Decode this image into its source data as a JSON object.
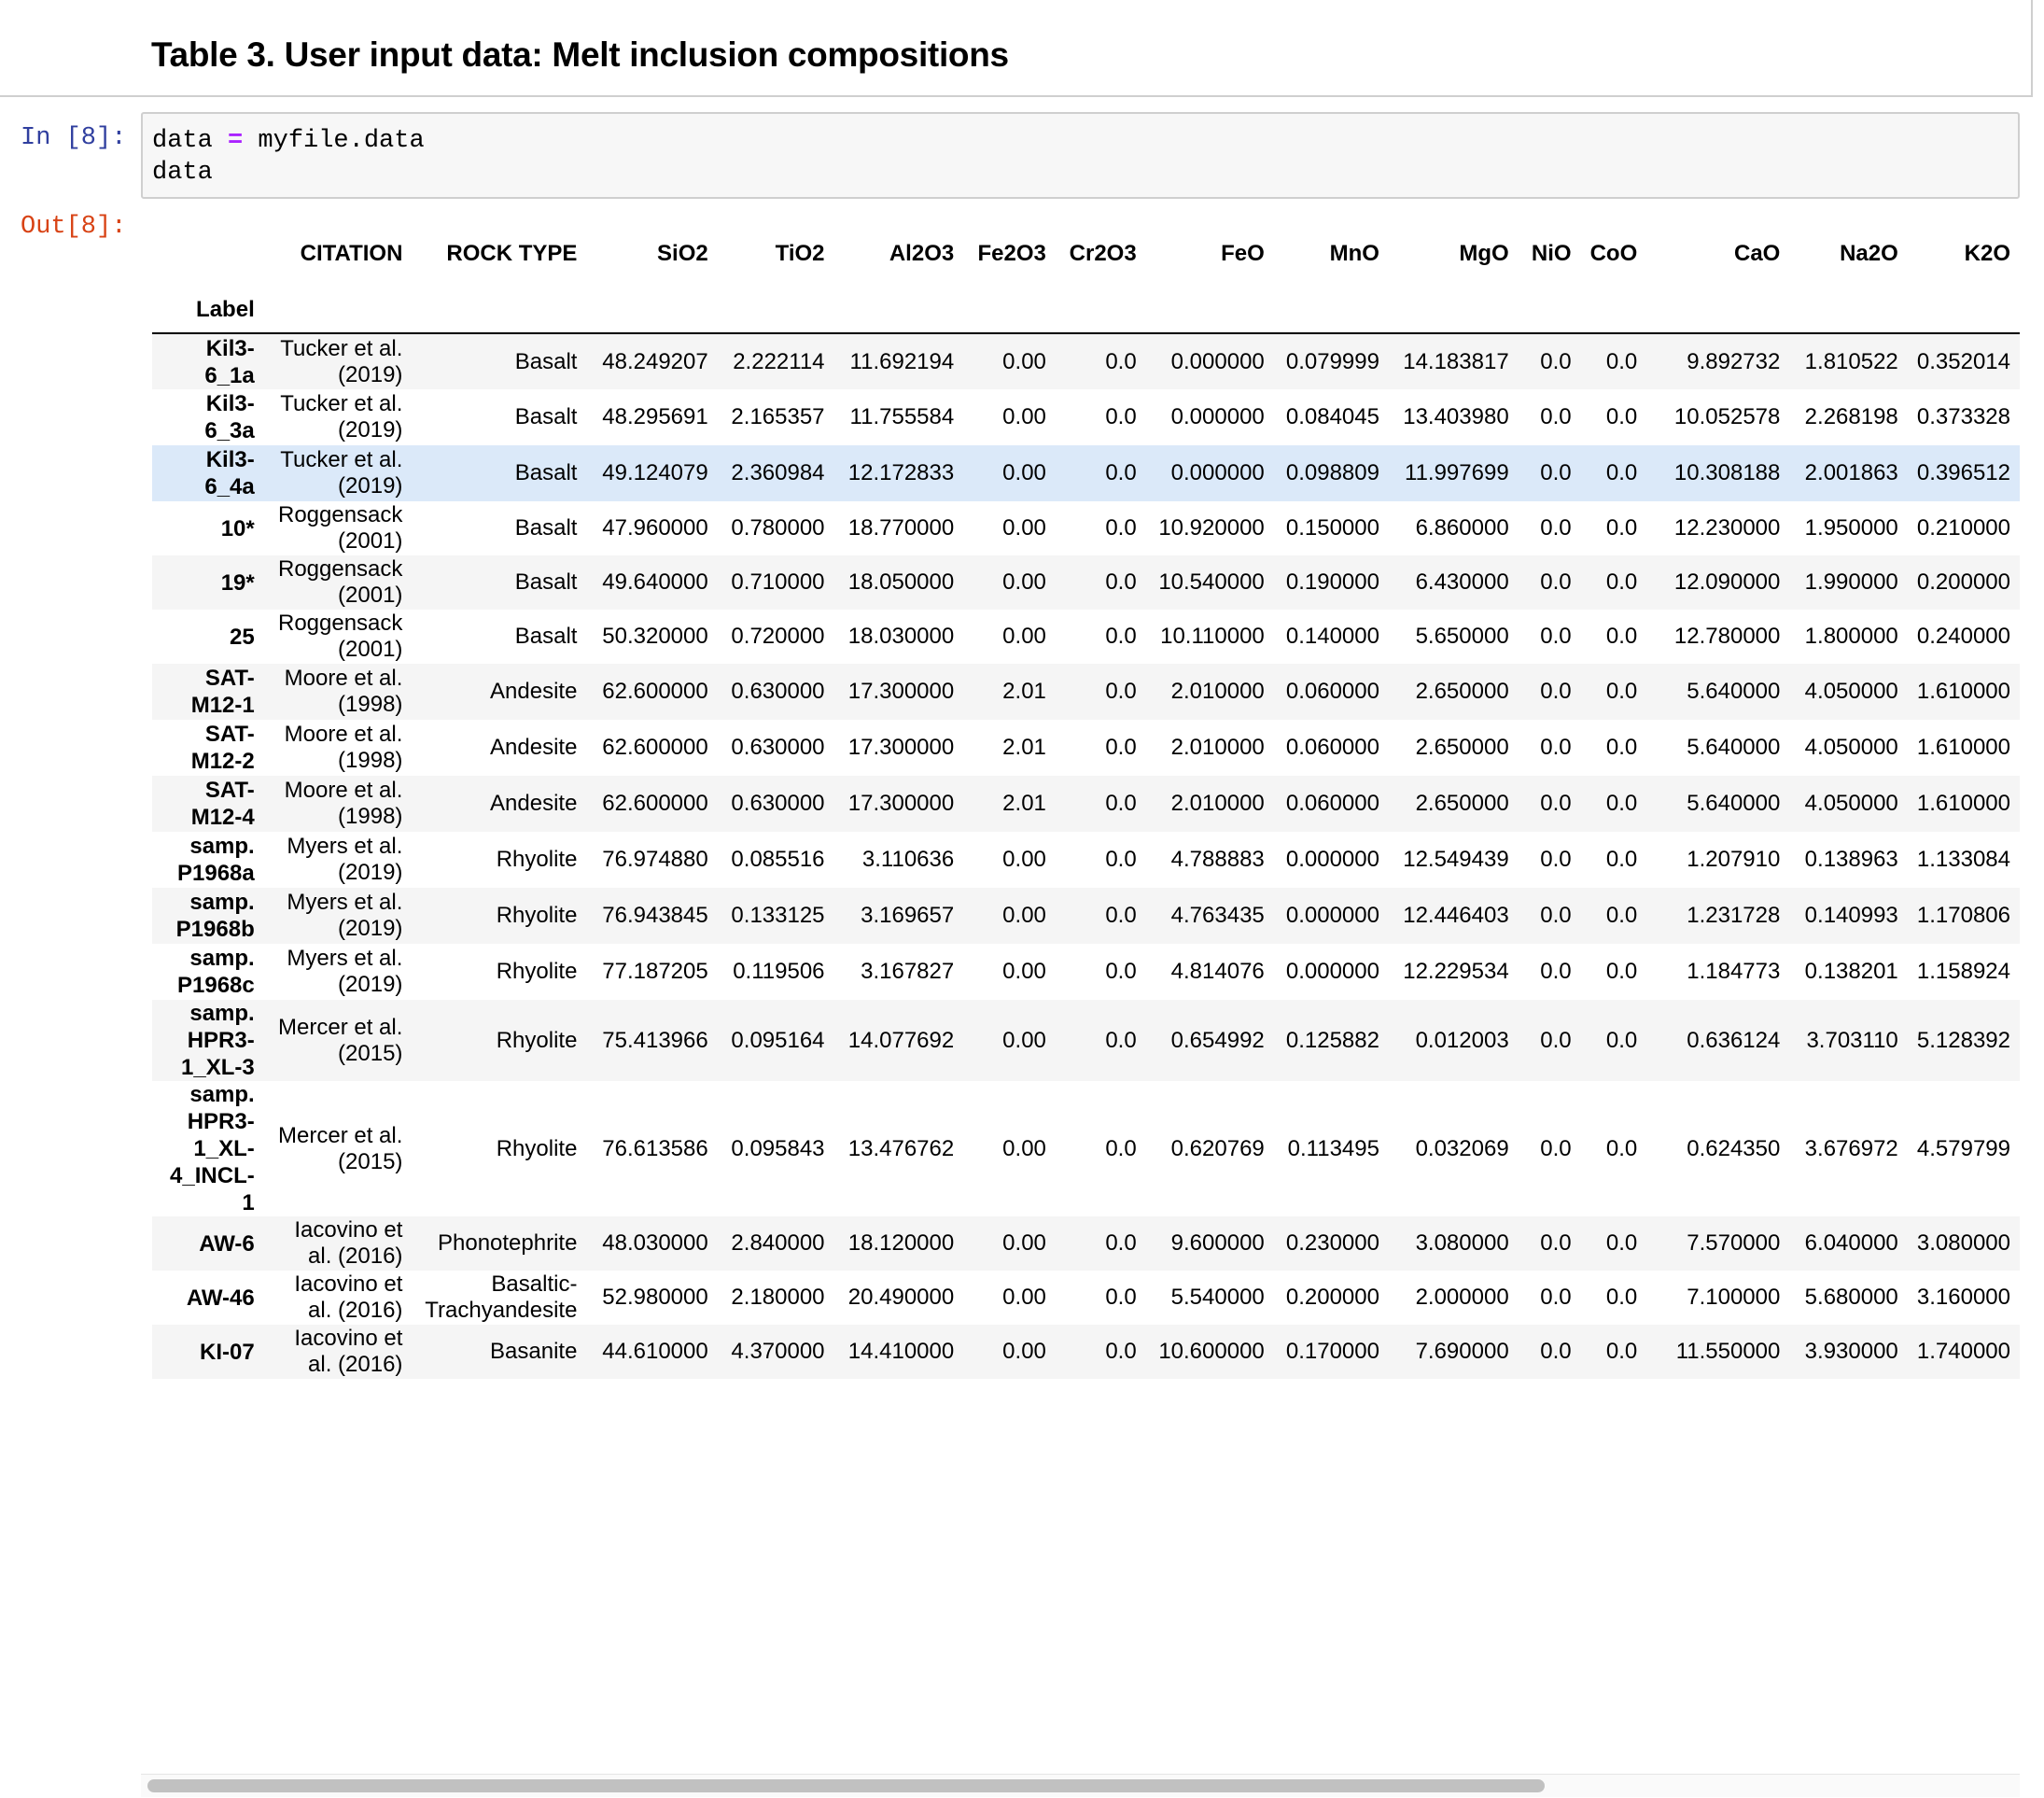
{
  "markdown": {
    "title": "Table 3. User input data: Melt inclusion compositions"
  },
  "input_cell": {
    "prompt": "In [8]:",
    "code": {
      "line1_a": "data ",
      "line1_op": "=",
      "line1_b": " myfile.data",
      "line2": "data"
    }
  },
  "output_cell": {
    "prompt": "Out[8]:"
  },
  "table": {
    "index_name": "Label",
    "columns": [
      "CITATION",
      "ROCK TYPE",
      "SiO2",
      "TiO2",
      "Al2O3",
      "Fe2O3",
      "Cr2O3",
      "FeO",
      "MnO",
      "MgO",
      "NiO",
      "CoO",
      "CaO",
      "Na2O",
      "K2O"
    ],
    "rows": [
      {
        "label": "Kil3-6_1a",
        "cells": [
          "Tucker et al. (2019)",
          "Basalt",
          "48.249207",
          "2.222114",
          "11.692194",
          "0.00",
          "0.0",
          "0.000000",
          "0.079999",
          "14.183817",
          "0.0",
          "0.0",
          "9.892732",
          "1.810522",
          "0.352014"
        ]
      },
      {
        "label": "Kil3-6_3a",
        "cells": [
          "Tucker et al. (2019)",
          "Basalt",
          "48.295691",
          "2.165357",
          "11.755584",
          "0.00",
          "0.0",
          "0.000000",
          "0.084045",
          "13.403980",
          "0.0",
          "0.0",
          "10.052578",
          "2.268198",
          "0.373328"
        ]
      },
      {
        "label": "Kil3-6_4a",
        "cells": [
          "Tucker et al. (2019)",
          "Basalt",
          "49.124079",
          "2.360984",
          "12.172833",
          "0.00",
          "0.0",
          "0.000000",
          "0.098809",
          "11.997699",
          "0.0",
          "0.0",
          "10.308188",
          "2.001863",
          "0.396512"
        ]
      },
      {
        "label": "10*",
        "cells": [
          "Roggensack (2001)",
          "Basalt",
          "47.960000",
          "0.780000",
          "18.770000",
          "0.00",
          "0.0",
          "10.920000",
          "0.150000",
          "6.860000",
          "0.0",
          "0.0",
          "12.230000",
          "1.950000",
          "0.210000"
        ]
      },
      {
        "label": "19*",
        "cells": [
          "Roggensack (2001)",
          "Basalt",
          "49.640000",
          "0.710000",
          "18.050000",
          "0.00",
          "0.0",
          "10.540000",
          "0.190000",
          "6.430000",
          "0.0",
          "0.0",
          "12.090000",
          "1.990000",
          "0.200000"
        ]
      },
      {
        "label": "25",
        "cells": [
          "Roggensack (2001)",
          "Basalt",
          "50.320000",
          "0.720000",
          "18.030000",
          "0.00",
          "0.0",
          "10.110000",
          "0.140000",
          "5.650000",
          "0.0",
          "0.0",
          "12.780000",
          "1.800000",
          "0.240000"
        ]
      },
      {
        "label": "SAT-M12-1",
        "cells": [
          "Moore et al. (1998)",
          "Andesite",
          "62.600000",
          "0.630000",
          "17.300000",
          "2.01",
          "0.0",
          "2.010000",
          "0.060000",
          "2.650000",
          "0.0",
          "0.0",
          "5.640000",
          "4.050000",
          "1.610000"
        ]
      },
      {
        "label": "SAT-M12-2",
        "cells": [
          "Moore et al. (1998)",
          "Andesite",
          "62.600000",
          "0.630000",
          "17.300000",
          "2.01",
          "0.0",
          "2.010000",
          "0.060000",
          "2.650000",
          "0.0",
          "0.0",
          "5.640000",
          "4.050000",
          "1.610000"
        ]
      },
      {
        "label": "SAT-M12-4",
        "cells": [
          "Moore et al. (1998)",
          "Andesite",
          "62.600000",
          "0.630000",
          "17.300000",
          "2.01",
          "0.0",
          "2.010000",
          "0.060000",
          "2.650000",
          "0.0",
          "0.0",
          "5.640000",
          "4.050000",
          "1.610000"
        ]
      },
      {
        "label": "samp. P1968a",
        "cells": [
          "Myers et al. (2019)",
          "Rhyolite",
          "76.974880",
          "0.085516",
          "3.110636",
          "0.00",
          "0.0",
          "4.788883",
          "0.000000",
          "12.549439",
          "0.0",
          "0.0",
          "1.207910",
          "0.138963",
          "1.133084"
        ]
      },
      {
        "label": "samp. P1968b",
        "cells": [
          "Myers et al. (2019)",
          "Rhyolite",
          "76.943845",
          "0.133125",
          "3.169657",
          "0.00",
          "0.0",
          "4.763435",
          "0.000000",
          "12.446403",
          "0.0",
          "0.0",
          "1.231728",
          "0.140993",
          "1.170806"
        ]
      },
      {
        "label": "samp. P1968c",
        "cells": [
          "Myers et al. (2019)",
          "Rhyolite",
          "77.187205",
          "0.119506",
          "3.167827",
          "0.00",
          "0.0",
          "4.814076",
          "0.000000",
          "12.229534",
          "0.0",
          "0.0",
          "1.184773",
          "0.138201",
          "1.158924"
        ]
      },
      {
        "label": "samp. HPR3-1_XL-3",
        "cells": [
          "Mercer et al. (2015)",
          "Rhyolite",
          "75.413966",
          "0.095164",
          "14.077692",
          "0.00",
          "0.0",
          "0.654992",
          "0.125882",
          "0.012003",
          "0.0",
          "0.0",
          "0.636124",
          "3.703110",
          "5.128392"
        ]
      },
      {
        "label": "samp. HPR3-1_XL-4_INCL-1",
        "cells": [
          "Mercer et al. (2015)",
          "Rhyolite",
          "76.613586",
          "0.095843",
          "13.476762",
          "0.00",
          "0.0",
          "0.620769",
          "0.113495",
          "0.032069",
          "0.0",
          "0.0",
          "0.624350",
          "3.676972",
          "4.579799"
        ]
      },
      {
        "label": "AW-6",
        "cells": [
          "Iacovino et al. (2016)",
          "Phonotephrite",
          "48.030000",
          "2.840000",
          "18.120000",
          "0.00",
          "0.0",
          "9.600000",
          "0.230000",
          "3.080000",
          "0.0",
          "0.0",
          "7.570000",
          "6.040000",
          "3.080000"
        ]
      },
      {
        "label": "AW-46",
        "cells": [
          "Iacovino et al. (2016)",
          "Basaltic-Trachyandesite",
          "52.980000",
          "2.180000",
          "20.490000",
          "0.00",
          "0.0",
          "5.540000",
          "0.200000",
          "2.000000",
          "0.0",
          "0.0",
          "7.100000",
          "5.680000",
          "3.160000"
        ]
      },
      {
        "label": "KI-07",
        "cells": [
          "Iacovino et al. (2016)",
          "Basanite",
          "44.610000",
          "4.370000",
          "14.410000",
          "0.00",
          "0.0",
          "10.600000",
          "0.170000",
          "7.690000",
          "0.0",
          "0.0",
          "11.550000",
          "3.930000",
          "1.740000"
        ]
      }
    ]
  },
  "colors": {
    "prompt_in": "#303f9f",
    "prompt_out": "#d84315",
    "row_stripe": "#f5f5f5",
    "row_hover": "#dbe9f9"
  }
}
